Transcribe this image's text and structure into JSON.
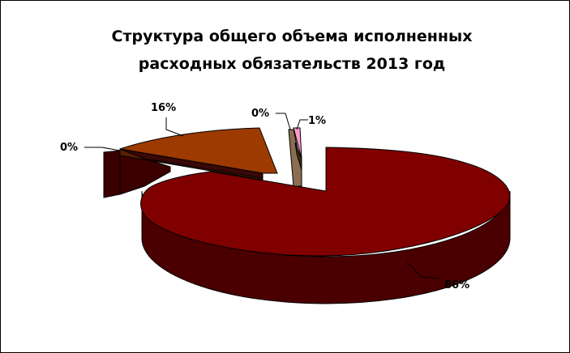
{
  "chart_data": {
    "type": "pie",
    "title_lines": [
      "Структура общего объема исполненных",
      "расходных обязательств 2013 год"
    ],
    "slices": [
      {
        "label": "86%",
        "value": 86,
        "color": "#800000"
      },
      {
        "label": "0%",
        "value": 0,
        "color": "#3a0808"
      },
      {
        "label": "16%",
        "value": 16,
        "color": "#9c3a00"
      },
      {
        "label": "0%",
        "value": 0,
        "color": "#8b6e52"
      },
      {
        "label": "1%",
        "value": 1,
        "color": "#ff99cc"
      }
    ],
    "three_d": true,
    "exploded": true
  }
}
